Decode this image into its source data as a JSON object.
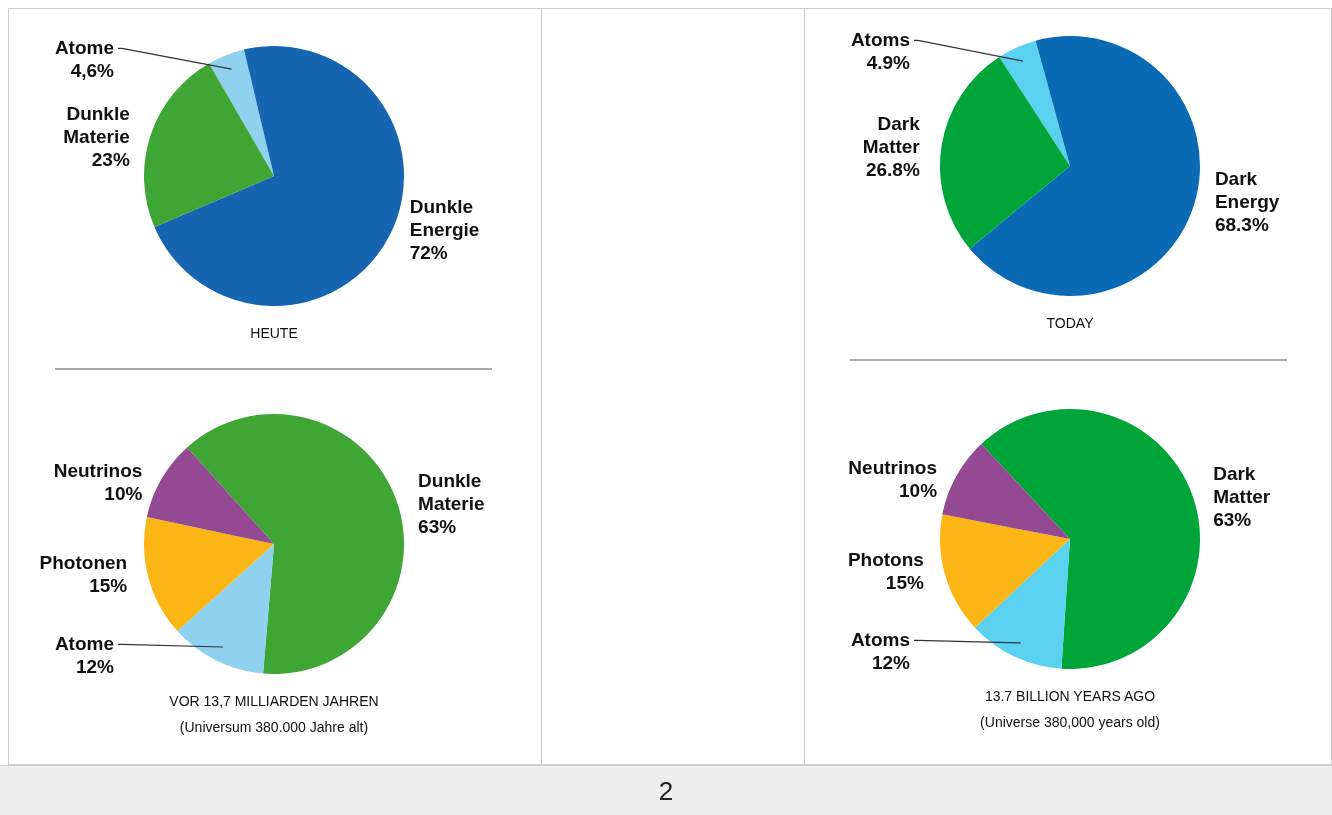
{
  "chart_data": [
    {
      "type": "pie",
      "title": "HEUTE",
      "categories": [
        "Atome",
        "Dunkle Energie",
        "Dunkle Materie"
      ],
      "values": [
        4.6,
        72,
        23
      ],
      "value_labels": [
        "4,6%",
        "72%",
        "23%"
      ],
      "colors": [
        "#8ed2f0",
        "#1565b0",
        "#3fa535"
      ]
    },
    {
      "type": "pie",
      "title": "VOR 13,7 MILLIARDEN JAHREN",
      "subtitle": "(Universum 380.000 Jahre alt)",
      "categories": [
        "Dunkle Materie",
        "Atome",
        "Photonen",
        "Neutrinos"
      ],
      "values": [
        63,
        12,
        15,
        10
      ],
      "value_labels": [
        "63%",
        "12%",
        "15%",
        "10%"
      ],
      "colors": [
        "#3fa535",
        "#8ed2f0",
        "#fbb514",
        "#944a93"
      ]
    },
    {
      "type": "pie",
      "title": "TODAY",
      "categories": [
        "Atoms",
        "Dark Energy",
        "Dark Matter"
      ],
      "values": [
        4.9,
        68.3,
        26.8
      ],
      "value_labels": [
        "4.9%",
        "68.3%",
        "26.8%"
      ],
      "colors": [
        "#5bd1f2",
        "#0a6ab3",
        "#00a53a"
      ]
    },
    {
      "type": "pie",
      "title": "13.7 BILLION YEARS AGO",
      "subtitle": "(Universe 380,000 years old)",
      "categories": [
        "Dark Matter",
        "Atoms",
        "Photons",
        "Neutrinos"
      ],
      "values": [
        63,
        12,
        15,
        10
      ],
      "value_labels": [
        "63%",
        "12%",
        "15%",
        "10%"
      ],
      "colors": [
        "#00a53a",
        "#5bd1f2",
        "#fbb514",
        "#944a93"
      ]
    },
    {
      "type": "other",
      "annotations": [
        "2"
      ]
    }
  ]
}
